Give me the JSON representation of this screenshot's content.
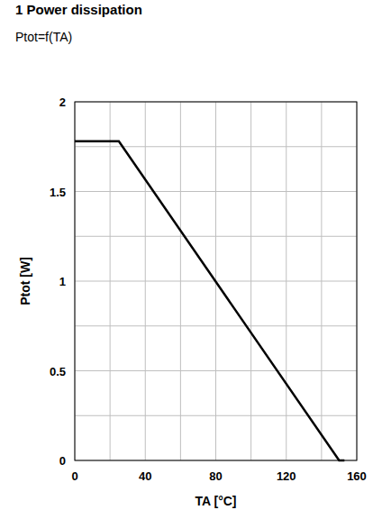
{
  "chart_data": {
    "type": "line",
    "title": "1 Power dissipation",
    "subtitle": "Ptot=f(TA)",
    "x_label": "TA [°C]",
    "y_label": "Ptot [W]",
    "x": [
      0,
      25,
      150,
      153
    ],
    "values": [
      1.78,
      1.78,
      0,
      0
    ],
    "color": "#000000",
    "xlim": [
      0,
      160
    ],
    "xticks": [
      0,
      40,
      80,
      120,
      160
    ],
    "ylim": [
      0,
      2
    ],
    "yticks": [
      0,
      0.5,
      1,
      1.5,
      2
    ],
    "grid": true
  }
}
